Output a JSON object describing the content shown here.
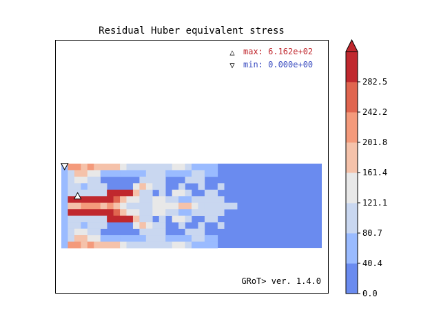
{
  "chart_data": {
    "type": "heatmap",
    "title": "Residual Huber equivalent stress",
    "annotations": {
      "max_symbol": "△",
      "max_label": "max: 6.162e+02",
      "min_symbol": "▽",
      "min_label": "min: 0.000e+00",
      "version": "GRoT> ver. 1.4.0"
    },
    "colors": {
      "max_text": "#c0282e",
      "min_text": "#3a4cc0"
    },
    "colorbar": {
      "ticks": [
        "0.0",
        "40.4",
        "80.7",
        "121.1",
        "161.4",
        "201.8",
        "242.2",
        "282.5"
      ],
      "bands": [
        "#6a8bef",
        "#9abbff",
        "#c9d7f0",
        "#e8e8e8",
        "#f5c2aa",
        "#f49a7b",
        "#e0654f",
        "#c0282e"
      ],
      "extend": "max"
    },
    "grid": {
      "rows": 13,
      "cols": 40,
      "base_level": 0,
      "rects": [
        [
          0,
          0,
          1,
          13,
          1
        ],
        [
          1,
          0,
          2,
          1,
          5
        ],
        [
          3,
          0,
          1,
          1,
          4
        ],
        [
          4,
          0,
          1,
          1,
          5
        ],
        [
          5,
          0,
          4,
          1,
          4
        ],
        [
          9,
          0,
          1,
          1,
          3
        ],
        [
          10,
          0,
          7,
          1,
          2
        ],
        [
          17,
          0,
          2,
          1,
          3
        ],
        [
          19,
          0,
          1,
          1,
          2
        ],
        [
          20,
          0,
          4,
          1,
          1
        ],
        [
          1,
          1,
          1,
          1,
          2
        ],
        [
          2,
          1,
          2,
          1,
          4
        ],
        [
          4,
          1,
          2,
          1,
          3
        ],
        [
          6,
          1,
          3,
          1,
          1
        ],
        [
          9,
          1,
          4,
          1,
          1
        ],
        [
          13,
          1,
          3,
          1,
          2
        ],
        [
          16,
          1,
          4,
          1,
          1
        ],
        [
          20,
          1,
          2,
          1,
          2
        ],
        [
          22,
          1,
          2,
          1,
          1
        ],
        [
          1,
          2,
          1,
          1,
          2
        ],
        [
          2,
          2,
          2,
          1,
          3
        ],
        [
          4,
          2,
          2,
          1,
          2
        ],
        [
          12,
          2,
          4,
          1,
          2
        ],
        [
          19,
          2,
          3,
          1,
          2
        ],
        [
          1,
          3,
          2,
          1,
          2
        ],
        [
          3,
          3,
          1,
          1,
          1
        ],
        [
          4,
          3,
          3,
          1,
          2
        ],
        [
          11,
          3,
          1,
          1,
          3
        ],
        [
          12,
          3,
          1,
          1,
          4
        ],
        [
          13,
          3,
          1,
          1,
          3
        ],
        [
          14,
          3,
          2,
          1,
          2
        ],
        [
          18,
          3,
          1,
          1,
          2
        ],
        [
          21,
          3,
          1,
          1,
          2
        ],
        [
          24,
          3,
          1,
          1,
          2
        ],
        [
          1,
          4,
          6,
          1,
          2
        ],
        [
          7,
          4,
          4,
          1,
          7
        ],
        [
          11,
          4,
          1,
          1,
          4
        ],
        [
          12,
          4,
          2,
          1,
          2
        ],
        [
          15,
          4,
          1,
          1,
          2
        ],
        [
          17,
          4,
          2,
          1,
          3
        ],
        [
          19,
          4,
          1,
          1,
          2
        ],
        [
          22,
          4,
          2,
          1,
          2
        ],
        [
          1,
          5,
          7,
          1,
          7
        ],
        [
          8,
          5,
          1,
          1,
          6
        ],
        [
          9,
          5,
          1,
          1,
          4
        ],
        [
          10,
          5,
          2,
          1,
          3
        ],
        [
          12,
          5,
          2,
          1,
          2
        ],
        [
          14,
          5,
          2,
          1,
          3
        ],
        [
          16,
          5,
          2,
          1,
          2
        ],
        [
          18,
          5,
          2,
          1,
          1
        ],
        [
          20,
          5,
          5,
          1,
          2
        ],
        [
          1,
          6,
          2,
          1,
          4
        ],
        [
          3,
          6,
          3,
          1,
          5
        ],
        [
          6,
          6,
          1,
          1,
          4
        ],
        [
          7,
          6,
          1,
          1,
          5
        ],
        [
          8,
          6,
          1,
          1,
          4
        ],
        [
          9,
          6,
          1,
          1,
          3
        ],
        [
          10,
          6,
          4,
          1,
          2
        ],
        [
          14,
          6,
          4,
          1,
          3
        ],
        [
          18,
          6,
          2,
          1,
          4
        ],
        [
          20,
          6,
          1,
          1,
          3
        ],
        [
          21,
          6,
          1,
          1,
          2
        ],
        [
          22,
          6,
          5,
          1,
          2
        ],
        [
          1,
          7,
          7,
          1,
          7
        ],
        [
          8,
          7,
          1,
          1,
          6
        ],
        [
          9,
          7,
          1,
          1,
          4
        ],
        [
          10,
          7,
          2,
          1,
          3
        ],
        [
          12,
          7,
          2,
          1,
          2
        ],
        [
          14,
          7,
          2,
          1,
          3
        ],
        [
          16,
          7,
          2,
          1,
          2
        ],
        [
          18,
          7,
          2,
          1,
          1
        ],
        [
          20,
          7,
          5,
          1,
          2
        ],
        [
          1,
          8,
          6,
          1,
          2
        ],
        [
          7,
          8,
          4,
          1,
          7
        ],
        [
          11,
          8,
          1,
          1,
          4
        ],
        [
          12,
          8,
          2,
          1,
          2
        ],
        [
          15,
          8,
          1,
          1,
          2
        ],
        [
          17,
          8,
          2,
          1,
          3
        ],
        [
          19,
          8,
          1,
          1,
          2
        ],
        [
          22,
          8,
          2,
          1,
          2
        ],
        [
          1,
          9,
          2,
          1,
          2
        ],
        [
          3,
          9,
          1,
          1,
          1
        ],
        [
          4,
          9,
          3,
          1,
          2
        ],
        [
          11,
          9,
          1,
          1,
          3
        ],
        [
          12,
          9,
          1,
          1,
          4
        ],
        [
          13,
          9,
          1,
          1,
          3
        ],
        [
          14,
          9,
          2,
          1,
          2
        ],
        [
          18,
          9,
          1,
          1,
          2
        ],
        [
          21,
          9,
          1,
          1,
          2
        ],
        [
          24,
          9,
          1,
          1,
          2
        ],
        [
          1,
          10,
          1,
          1,
          2
        ],
        [
          2,
          10,
          2,
          1,
          3
        ],
        [
          4,
          10,
          2,
          1,
          2
        ],
        [
          12,
          10,
          4,
          1,
          2
        ],
        [
          19,
          10,
          3,
          1,
          2
        ],
        [
          1,
          11,
          1,
          1,
          2
        ],
        [
          2,
          11,
          2,
          1,
          4
        ],
        [
          4,
          11,
          2,
          1,
          3
        ],
        [
          6,
          11,
          3,
          1,
          1
        ],
        [
          9,
          11,
          4,
          1,
          1
        ],
        [
          13,
          11,
          3,
          1,
          2
        ],
        [
          16,
          11,
          4,
          1,
          1
        ],
        [
          20,
          11,
          2,
          1,
          2
        ],
        [
          22,
          11,
          2,
          1,
          1
        ],
        [
          1,
          12,
          2,
          1,
          5
        ],
        [
          3,
          12,
          1,
          1,
          4
        ],
        [
          4,
          12,
          1,
          1,
          5
        ],
        [
          5,
          12,
          4,
          1,
          4
        ],
        [
          9,
          12,
          1,
          1,
          3
        ],
        [
          10,
          12,
          7,
          1,
          2
        ],
        [
          17,
          12,
          2,
          1,
          3
        ],
        [
          19,
          12,
          1,
          1,
          2
        ],
        [
          20,
          12,
          4,
          1,
          1
        ]
      ]
    },
    "markers": [
      {
        "symbol": "△",
        "col": 2.5,
        "row": 5.0
      },
      {
        "symbol": "▽",
        "col": 0.5,
        "row": 0.4
      }
    ]
  }
}
